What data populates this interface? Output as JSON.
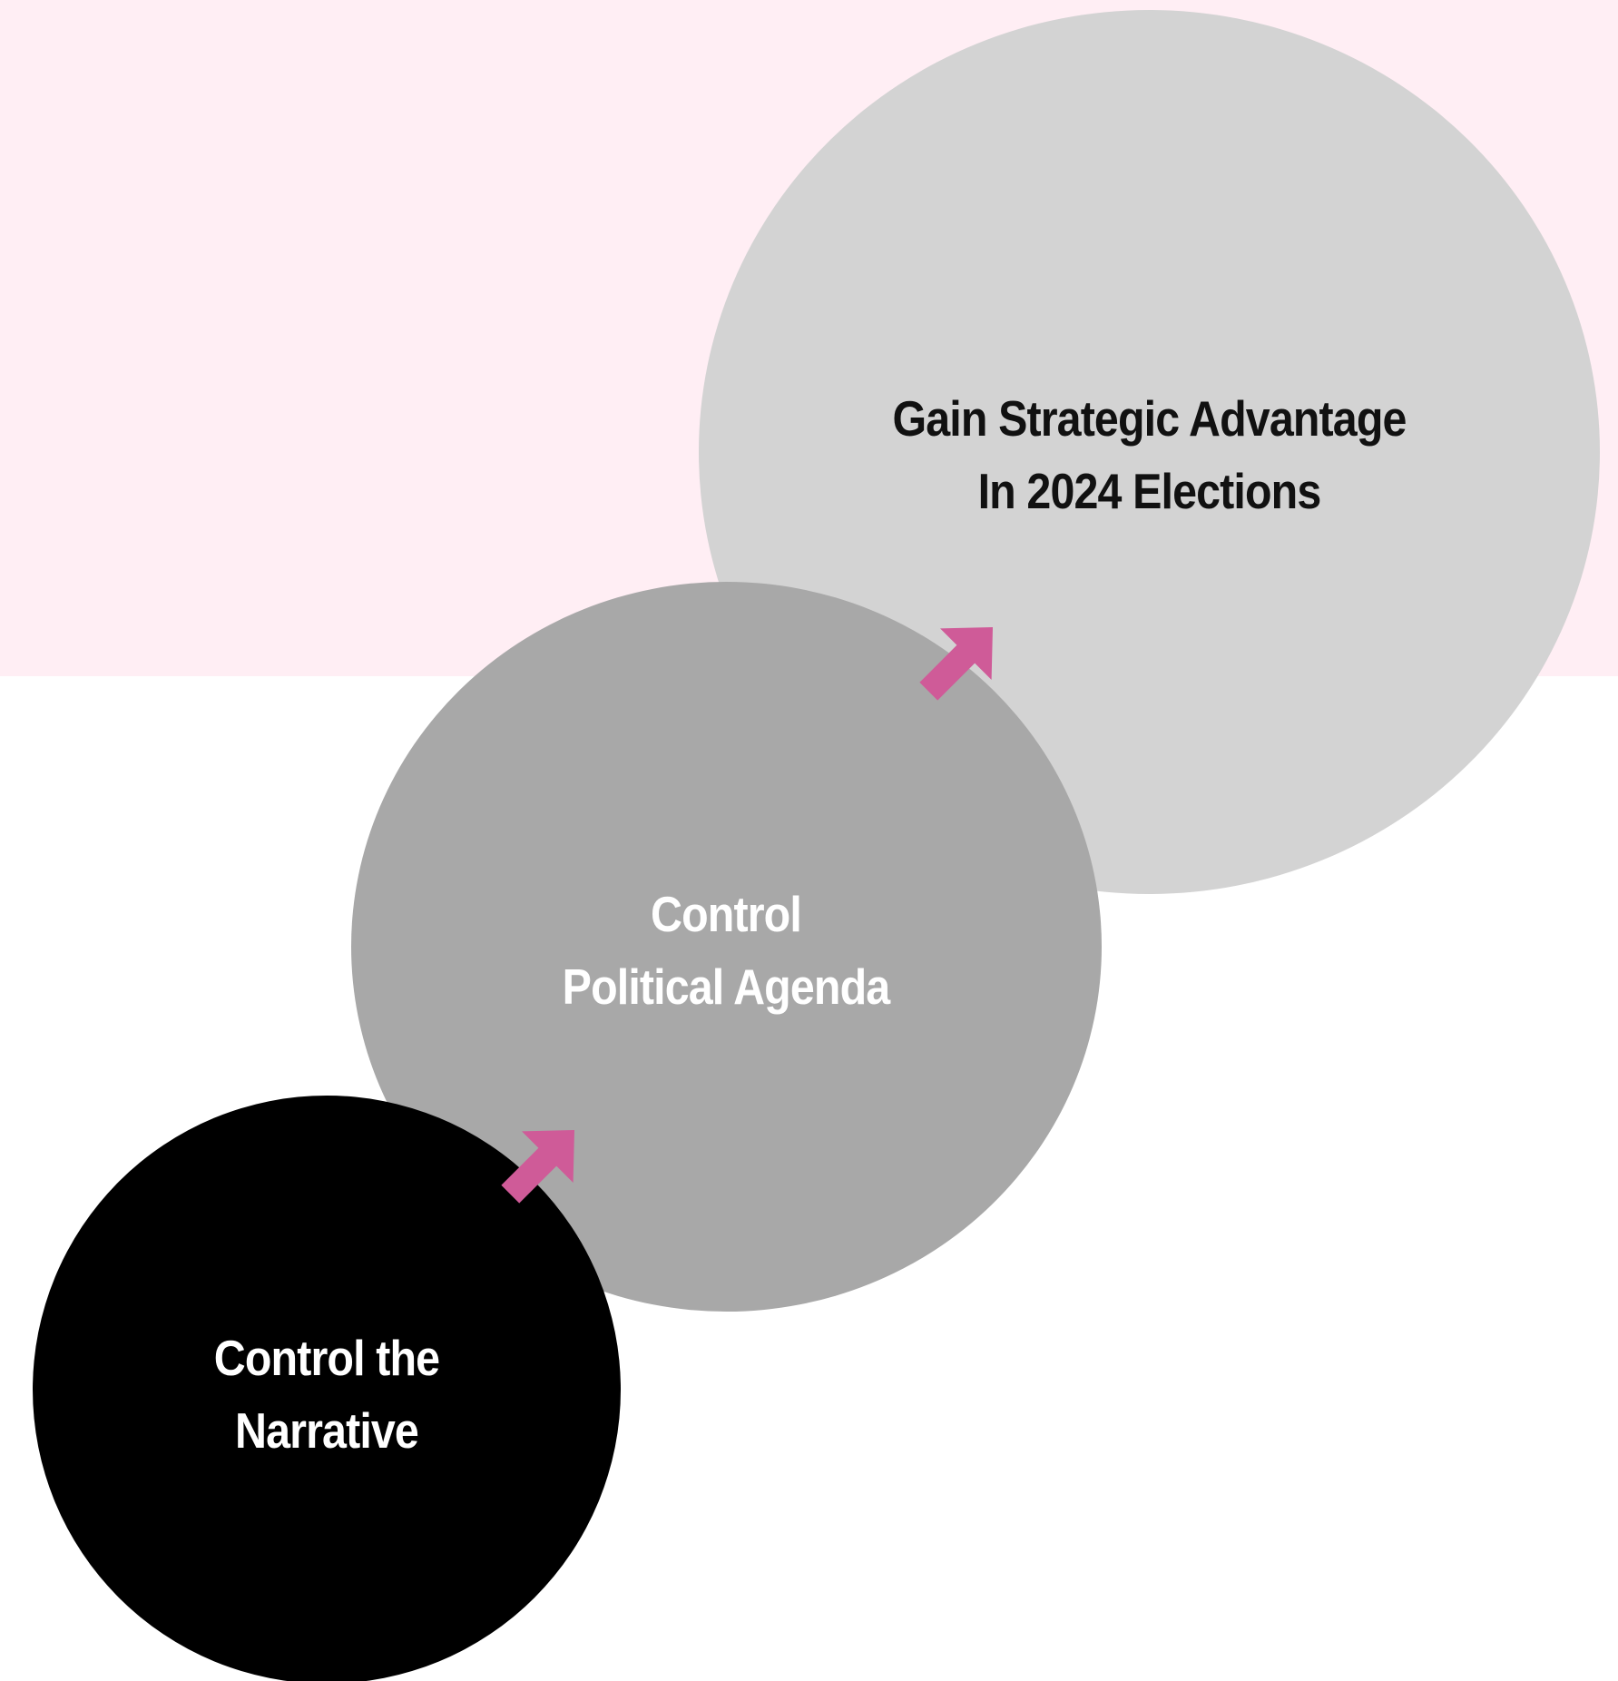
{
  "colors": {
    "background": "#ffffff",
    "band": "#ffeef4",
    "goal_fill": "#d3d3d3",
    "agenda_fill": "#a8a8a8",
    "narrative_fill": "#000000",
    "goal_text": "#111111",
    "agenda_text": "#ffffff",
    "narrative_text": "#ffffff",
    "arrow": "#cf5b98"
  },
  "steps": [
    {
      "id": "narrative",
      "lines": [
        "Control the",
        "Narrative"
      ]
    },
    {
      "id": "agenda",
      "lines": [
        "Control",
        "Political Agenda"
      ]
    },
    {
      "id": "goal",
      "lines": [
        "Gain Strategic Advantage",
        "In 2024 Elections"
      ]
    }
  ],
  "connectors": [
    {
      "from": "narrative",
      "to": "agenda",
      "icon": "arrow-up-right-icon"
    },
    {
      "from": "agenda",
      "to": "goal",
      "icon": "arrow-up-right-icon"
    }
  ]
}
